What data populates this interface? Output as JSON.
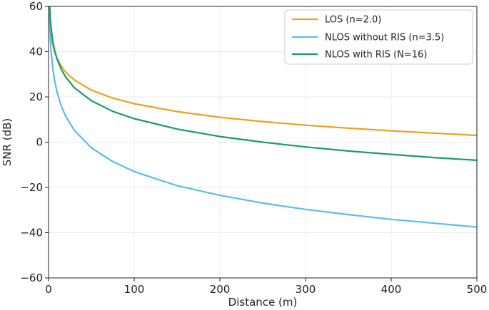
{
  "chart_data": {
    "type": "line",
    "title": "",
    "xlabel": "Distance (m)",
    "ylabel": "SNR (dB)",
    "xlim": [
      0,
      500
    ],
    "ylim": [
      -60,
      60
    ],
    "xticks": [
      0,
      100,
      200,
      300,
      400,
      500
    ],
    "xtick_labels": [
      "0",
      "100",
      "200",
      "300",
      "400",
      "500"
    ],
    "yticks": [
      -60,
      -40,
      -20,
      0,
      20,
      40,
      60
    ],
    "ytick_labels": [
      "−60",
      "−40",
      "−20",
      "0",
      "20",
      "40",
      "60"
    ],
    "grid": true,
    "legend_position": "top-right",
    "series": [
      {
        "name": "LOS (n=2.0)",
        "color": "#E8A21E",
        "x": [
          1,
          2,
          3,
          5,
          7,
          10,
          15,
          20,
          30,
          50,
          75,
          100,
          150,
          200,
          250,
          300,
          350,
          400,
          450,
          500
        ],
        "y": [
          57.0,
          51.0,
          47.5,
          43.0,
          40.1,
          37.0,
          33.5,
          31.0,
          27.5,
          23.0,
          19.5,
          17.0,
          13.5,
          11.0,
          9.1,
          7.5,
          6.2,
          5.0,
          4.0,
          3.0
        ]
      },
      {
        "name": "NLOS without RIS (n=3.5)",
        "color": "#5BBCEA",
        "x": [
          1,
          2,
          3,
          5,
          7,
          10,
          15,
          20,
          30,
          50,
          75,
          100,
          150,
          200,
          250,
          300,
          350,
          400,
          450,
          500
        ],
        "y": [
          57.0,
          46.5,
          40.3,
          32.5,
          27.4,
          22.0,
          15.8,
          11.5,
          5.3,
          -2.5,
          -8.6,
          -13.0,
          -19.2,
          -23.5,
          -26.9,
          -29.7,
          -32.0,
          -34.1,
          -35.8,
          -37.5
        ]
      },
      {
        "name": "NLOS with RIS (N=16)",
        "color": "#1A9A6C",
        "x": [
          1,
          2,
          3,
          5,
          7,
          10,
          15,
          20,
          30,
          50,
          75,
          100,
          150,
          200,
          250,
          300,
          350,
          400,
          450,
          500
        ],
        "y": [
          63.0,
          55.1,
          50.4,
          44.6,
          40.7,
          36.7,
          32.1,
          28.8,
          24.1,
          18.3,
          13.6,
          10.4,
          5.8,
          2.5,
          0.0,
          -2.1,
          -3.9,
          -5.4,
          -6.8,
          -8.0
        ]
      }
    ]
  }
}
